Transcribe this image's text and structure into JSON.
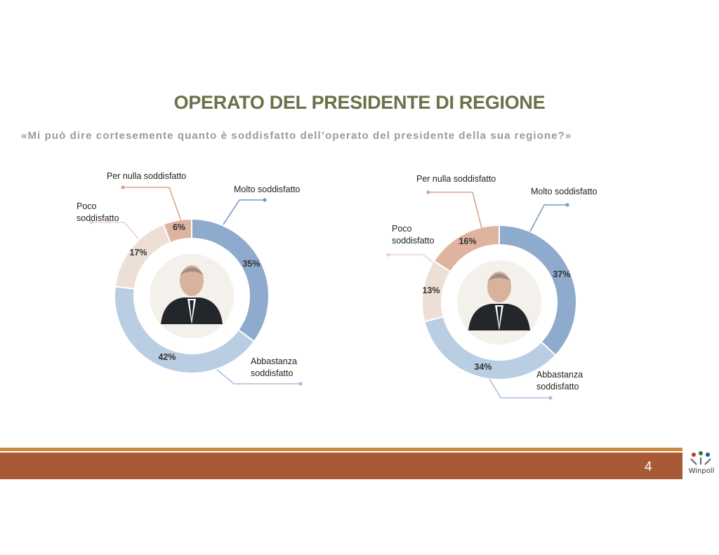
{
  "title": "OPERATO DEL PRESIDENTE DI REGIONE",
  "subtitle": "«Mi può dire cortesemente quanto è soddisfatto dell’operato del presidente della sua regione?»",
  "page_number": "4",
  "logo_text": "Winpoll",
  "colors": {
    "title": "#6b7149",
    "molto": "#8eaacd",
    "abbastanza": "#b9cde3",
    "poco": "#eedfd6",
    "per_nulla": "#deb3a0",
    "footer_bar": "#a85a35",
    "footer_line": "#cf8a3e"
  },
  "chart_data": [
    {
      "type": "pie",
      "donut": true,
      "categories": [
        "Molto soddisfatto",
        "Abbastanza soddisfatto",
        "Poco soddisfatto",
        "Per nulla soddisfatto"
      ],
      "values": [
        35,
        42,
        17,
        6
      ],
      "value_labels": [
        "35%",
        "42%",
        "17%",
        "6%"
      ],
      "image": "president-portrait"
    },
    {
      "type": "pie",
      "donut": true,
      "categories": [
        "Molto soddisfatto",
        "Abbastanza soddisfatto",
        "Poco soddisfatto",
        "Per nulla soddisfatto"
      ],
      "values": [
        37,
        34,
        13,
        16
      ],
      "value_labels": [
        "37%",
        "34%",
        "13%",
        "16%"
      ],
      "image": "president-portrait"
    }
  ]
}
